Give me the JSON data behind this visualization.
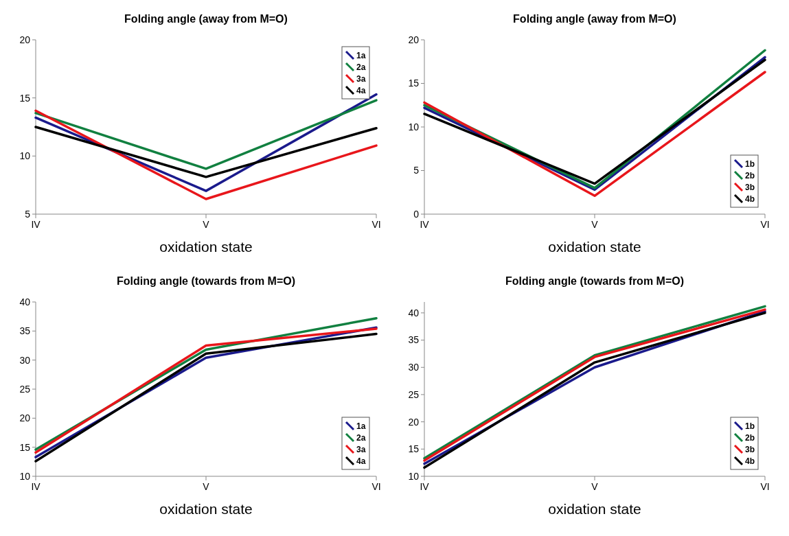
{
  "chart_data": [
    {
      "type": "line",
      "title": "Folding angle (away from M=O)",
      "xlabel": "oxidation state",
      "categories": [
        "IV",
        "V",
        "VI"
      ],
      "ylim": [
        5,
        20
      ],
      "yticks": [
        5,
        10,
        15,
        20
      ],
      "grid": false,
      "legend": "top right",
      "marker": "none",
      "line_style": "solid",
      "series": [
        {
          "name": "1a",
          "color": "#1a1a8c",
          "values": [
            13.3,
            7.0,
            15.3
          ]
        },
        {
          "name": "2a",
          "color": "#118040",
          "values": [
            13.7,
            8.9,
            14.8
          ]
        },
        {
          "name": "3a",
          "color": "#e8161b",
          "values": [
            13.9,
            6.3,
            10.9
          ]
        },
        {
          "name": "4a",
          "color": "#000000",
          "values": [
            12.5,
            8.2,
            12.4
          ]
        }
      ]
    },
    {
      "type": "line",
      "title": "Folding angle (away from M=O)",
      "xlabel": "oxidation state",
      "categories": [
        "IV",
        "V",
        "VI"
      ],
      "ylim": [
        0,
        20
      ],
      "yticks": [
        0,
        5,
        10,
        15,
        20
      ],
      "grid": false,
      "legend": "bottom right",
      "marker": "none",
      "line_style": "solid",
      "series": [
        {
          "name": "1b",
          "color": "#1a1a8c",
          "values": [
            12.2,
            2.8,
            18.0
          ]
        },
        {
          "name": "2b",
          "color": "#118040",
          "values": [
            12.5,
            3.0,
            18.8
          ]
        },
        {
          "name": "3b",
          "color": "#e8161b",
          "values": [
            12.8,
            2.1,
            16.3
          ]
        },
        {
          "name": "4b",
          "color": "#000000",
          "values": [
            11.5,
            3.5,
            17.7
          ]
        }
      ]
    },
    {
      "type": "line",
      "title": "Folding angle (towards from M=O)",
      "xlabel": "oxidation state",
      "categories": [
        "IV",
        "V",
        "VI"
      ],
      "ylim": [
        10,
        40
      ],
      "yticks": [
        10,
        15,
        20,
        25,
        30,
        35,
        40
      ],
      "grid": false,
      "legend": "bottom right",
      "marker": "none",
      "line_style": "solid",
      "series": [
        {
          "name": "1a",
          "color": "#1a1a8c",
          "values": [
            13.3,
            30.4,
            35.6
          ]
        },
        {
          "name": "2a",
          "color": "#118040",
          "values": [
            14.6,
            31.8,
            37.2
          ]
        },
        {
          "name": "3a",
          "color": "#e8161b",
          "values": [
            14.1,
            32.5,
            35.4
          ]
        },
        {
          "name": "4a",
          "color": "#000000",
          "values": [
            12.6,
            31.1,
            34.5
          ]
        }
      ]
    },
    {
      "type": "line",
      "title": "Folding angle (towards from M=O)",
      "xlabel": "oxidation state",
      "categories": [
        "IV",
        "V",
        "VI"
      ],
      "ylim": [
        10,
        42
      ],
      "yticks": [
        10,
        15,
        20,
        25,
        30,
        35,
        40
      ],
      "grid": false,
      "legend": "bottom right",
      "marker": "none",
      "line_style": "solid",
      "series": [
        {
          "name": "1b",
          "color": "#1a1a8c",
          "values": [
            12.3,
            30.0,
            40.3
          ]
        },
        {
          "name": "2b",
          "color": "#118040",
          "values": [
            13.3,
            32.2,
            41.2
          ]
        },
        {
          "name": "3b",
          "color": "#e8161b",
          "values": [
            12.9,
            31.9,
            40.6
          ]
        },
        {
          "name": "4b",
          "color": "#000000",
          "values": [
            11.6,
            30.9,
            40.0
          ]
        }
      ]
    }
  ]
}
